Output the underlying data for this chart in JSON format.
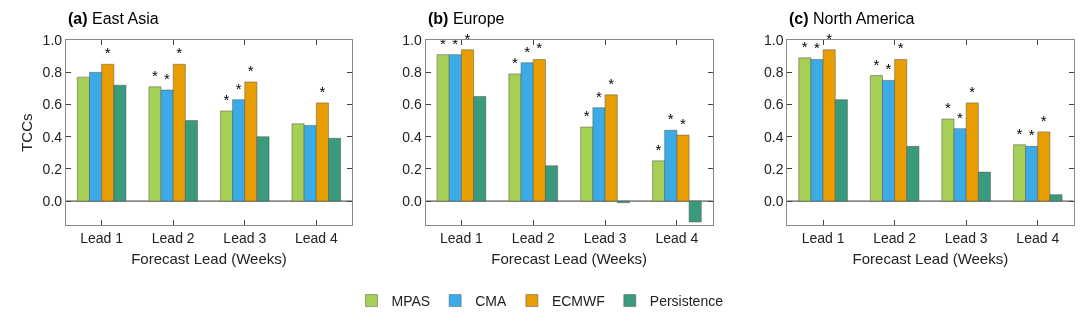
{
  "chart_data": [
    {
      "type": "bar",
      "title": "(a) East Asia",
      "ref_lines": [
        {
          "axis": "y",
          "value": 0,
          "color": "#333333"
        }
      ],
      "xlabel": "Forecast Lead (Weeks)",
      "ylabel": "TCCs",
      "categories": [
        "Lead 1",
        "Lead 2",
        "Lead 3",
        "Lead 4"
      ],
      "ylim": [
        -0.15,
        1.0
      ],
      "yticks": [
        {
          "value": 0,
          "label": "0.0"
        },
        {
          "value": 0.2,
          "label": "0.2"
        },
        {
          "value": 0.4,
          "label": "0.4"
        },
        {
          "value": 0.6,
          "label": "0.6"
        },
        {
          "value": 0.8,
          "label": "0.8"
        },
        {
          "value": 1.0,
          "label": "1.0"
        }
      ],
      "legend": "bottom",
      "series": [
        {
          "name": "MPAS",
          "color": "#a6cf55",
          "values": [
            0.77,
            0.71,
            0.56,
            0.48
          ],
          "value_labels": [
            null,
            "*",
            "*",
            null
          ]
        },
        {
          "name": "CMA",
          "color": "#3aabe6",
          "values": [
            0.8,
            0.69,
            0.63,
            0.47
          ],
          "value_labels": [
            null,
            "*",
            "*",
            null
          ]
        },
        {
          "name": "ECMWF",
          "color": "#e89e00",
          "values": [
            0.85,
            0.85,
            0.74,
            0.61
          ],
          "value_labels": [
            "*",
            "*",
            "*",
            "*"
          ]
        },
        {
          "name": "Persistence",
          "color": "#3a9a7e",
          "values": [
            0.72,
            0.5,
            0.4,
            0.39
          ]
        }
      ]
    },
    {
      "type": "bar",
      "title": "(b) Europe",
      "ref_lines": [
        {
          "axis": "y",
          "value": 0,
          "color": "#333333"
        }
      ],
      "xlabel": "Forecast Lead (Weeks)",
      "categories": [
        "Lead 1",
        "Lead 2",
        "Lead 3",
        "Lead 4"
      ],
      "ylim": [
        -0.15,
        1.0
      ],
      "yticks": [
        {
          "value": 0,
          "label": "0.0"
        },
        {
          "value": 0.2,
          "label": "0.2"
        },
        {
          "value": 0.4,
          "label": "0.4"
        },
        {
          "value": 0.6,
          "label": "0.6"
        },
        {
          "value": 0.8,
          "label": "0.8"
        },
        {
          "value": 1.0,
          "label": "1.0"
        }
      ],
      "legend": "bottom",
      "series": [
        {
          "name": "MPAS",
          "color": "#a6cf55",
          "values": [
            0.91,
            0.79,
            0.46,
            0.25
          ],
          "value_labels": [
            "*",
            "*",
            "*",
            "*"
          ]
        },
        {
          "name": "CMA",
          "color": "#3aabe6",
          "values": [
            0.91,
            0.86,
            0.58,
            0.44
          ],
          "value_labels": [
            "*",
            "*",
            "*",
            "*"
          ]
        },
        {
          "name": "ECMWF",
          "color": "#e89e00",
          "values": [
            0.94,
            0.88,
            0.66,
            0.41
          ],
          "value_labels": [
            "*",
            "*",
            "*",
            "*"
          ]
        },
        {
          "name": "Persistence",
          "color": "#3a9a7e",
          "values": [
            0.65,
            0.22,
            -0.01,
            -0.13
          ]
        }
      ]
    },
    {
      "type": "bar",
      "title": "(c) North America",
      "ref_lines": [
        {
          "axis": "y",
          "value": 0,
          "color": "#333333"
        }
      ],
      "xlabel": "Forecast Lead (Weeks)",
      "categories": [
        "Lead 1",
        "Lead 2",
        "Lead 3",
        "Lead 4"
      ],
      "ylim": [
        -0.15,
        1.0
      ],
      "yticks": [
        {
          "value": 0,
          "label": "0.0"
        },
        {
          "value": 0.2,
          "label": "0.2"
        },
        {
          "value": 0.4,
          "label": "0.4"
        },
        {
          "value": 0.6,
          "label": "0.6"
        },
        {
          "value": 0.8,
          "label": "0.8"
        },
        {
          "value": 1.0,
          "label": "1.0"
        }
      ],
      "legend": "bottom",
      "series": [
        {
          "name": "MPAS",
          "color": "#a6cf55",
          "values": [
            0.89,
            0.78,
            0.51,
            0.35
          ],
          "value_labels": [
            "*",
            "*",
            "*",
            "*"
          ]
        },
        {
          "name": "CMA",
          "color": "#3aabe6",
          "values": [
            0.88,
            0.75,
            0.45,
            0.34
          ],
          "value_labels": [
            "*",
            "*",
            "*",
            "*"
          ]
        },
        {
          "name": "ECMWF",
          "color": "#e89e00",
          "values": [
            0.94,
            0.88,
            0.61,
            0.43
          ],
          "value_labels": [
            "*",
            "*",
            "*",
            "*"
          ]
        },
        {
          "name": "Persistence",
          "color": "#3a9a7e",
          "values": [
            0.63,
            0.34,
            0.18,
            0.04
          ]
        }
      ]
    }
  ]
}
